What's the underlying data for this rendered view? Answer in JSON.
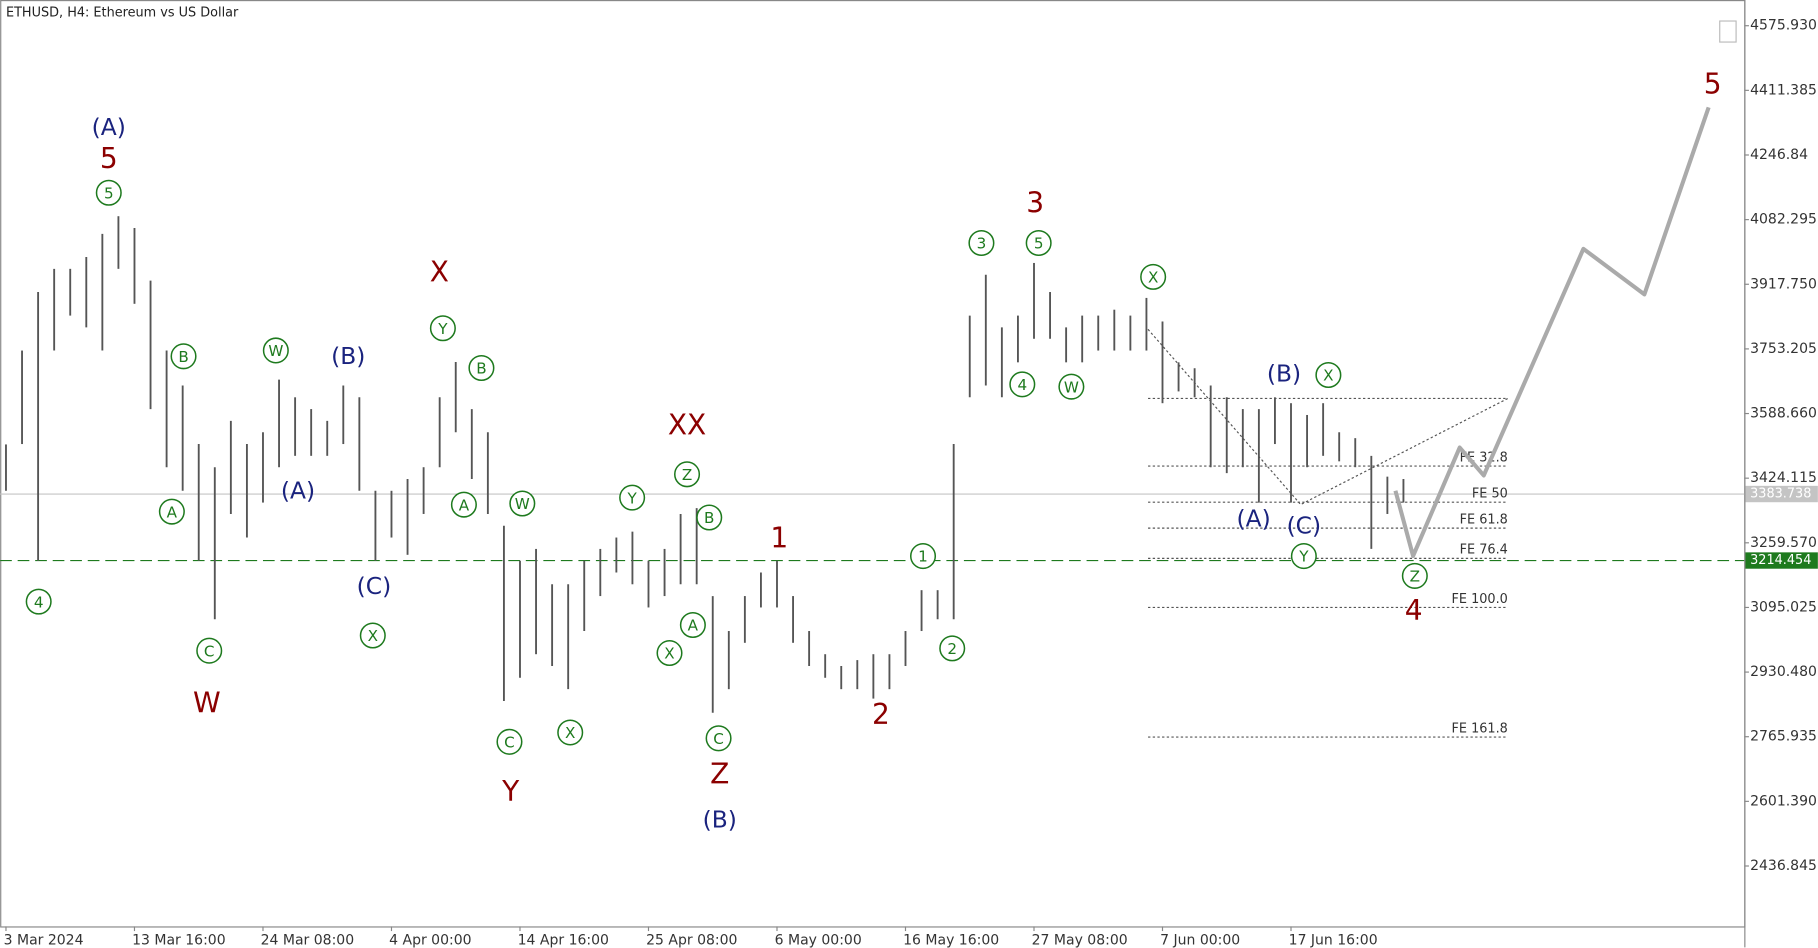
{
  "chart_data": {
    "type": "ohlc",
    "title": "ETHUSD, H4:  Ethereum vs US Dollar",
    "categories": [
      "3 Mar 2024",
      null,
      null,
      null,
      null,
      null,
      null,
      null,
      "13 Mar 16:00",
      null,
      null,
      null,
      null,
      null,
      null,
      null,
      "24 Mar 08:00",
      null,
      null,
      null,
      null,
      null,
      null,
      null,
      "4 Apr 00:00",
      null,
      null,
      null,
      null,
      null,
      null,
      null,
      "14 Apr 16:00",
      null,
      null,
      null,
      null,
      null,
      null,
      null,
      "25 Apr 08:00",
      null,
      null,
      null,
      null,
      null,
      null,
      null,
      "6 May 00:00",
      null,
      null,
      null,
      null,
      null,
      null,
      null,
      "16 May 16:00",
      null,
      null,
      null,
      null,
      null,
      null,
      null,
      "27 May 08:00",
      null,
      null,
      null,
      null,
      null,
      null,
      null,
      "7 Jun 00:00",
      null,
      null,
      null,
      null,
      null,
      null,
      null,
      "17 Jun 16:00",
      null,
      null,
      null,
      null,
      null,
      null,
      null
    ],
    "high": [
      3510,
      3749,
      3898,
      3957,
      3957,
      3987,
      4046,
      4091,
      4061,
      3927,
      3749,
      3660,
      3511,
      3452,
      3570,
      3511,
      3541,
      3675,
      3630,
      3600,
      3570,
      3660,
      3630,
      3392,
      3392,
      3422,
      3452,
      3630,
      3720,
      3600,
      3541,
      3303,
      3214,
      3244,
      3154,
      3154,
      3214,
      3244,
      3273,
      3288,
      3214,
      3244,
      3333,
      3348,
      3124,
      3035,
      3124,
      3184,
      3214,
      3124,
      3035,
      2976,
      2946,
      2961,
      2976,
      2976,
      3035,
      3139,
      3139,
      3511,
      3838,
      3942,
      3808,
      3838,
      3972,
      3898,
      3808,
      3838,
      3838,
      3853,
      3838,
      3883,
      3823,
      3719,
      3704,
      3660,
      3630,
      3600,
      3600,
      3630,
      3615,
      3585,
      3615,
      3541,
      3526,
      3481,
      3428,
      3422
    ],
    "low": [
      3392,
      3511,
      3214,
      3749,
      3838,
      3808,
      3749,
      3957,
      3868,
      3600,
      3452,
      3392,
      3214,
      3065,
      3333,
      3273,
      3362,
      3452,
      3481,
      3481,
      3481,
      3511,
      3392,
      3214,
      3273,
      3229,
      3333,
      3452,
      3541,
      3422,
      3333,
      2857,
      2916,
      2976,
      2946,
      2887,
      3035,
      3124,
      3184,
      3154,
      3095,
      3124,
      3154,
      3154,
      2827,
      2887,
      3005,
      3095,
      3095,
      3005,
      2946,
      2916,
      2887,
      2887,
      2863,
      2887,
      2946,
      3035,
      3065,
      3065,
      3630,
      3660,
      3630,
      3719,
      3779,
      3779,
      3719,
      3719,
      3749,
      3749,
      3749,
      3749,
      3615,
      3645,
      3630,
      3452,
      3437,
      3452,
      3362,
      3511,
      3362,
      3452,
      3481,
      3467,
      3452,
      3244,
      3333,
      3362
    ],
    "color": "#555555",
    "ylim": [
      2283.1,
      4641.4
    ],
    "yticks": [
      {
        "value": 4575.93,
        "label": "4575.930"
      },
      4411.385,
      4246.84,
      4082.295,
      {
        "value": 3917.75,
        "label": "3917.750"
      },
      3753.205,
      {
        "value": 3588.66,
        "label": "3588.660"
      },
      3424.115,
      {
        "value": 3259.57,
        "label": "3259.570"
      },
      3095.025,
      {
        "value": 2930.48,
        "label": "2930.480"
      },
      2765.935,
      {
        "value": 2601.39,
        "label": "2601.390"
      },
      2436.845
    ],
    "price_lines": [
      {
        "value": 3383.738,
        "color": "#c4c4c4",
        "dashed": false
      },
      {
        "value": 3214.454,
        "color": "#1e7a1e",
        "dashed": true
      }
    ],
    "fib_levels": {
      "x_range": [
        71.1,
        93.5
      ],
      "labels": [
        null,
        "FE 32.8",
        "FE 50",
        "FE 61.8",
        "FE 76.4",
        "FE 100.0",
        "FE 161.8"
      ],
      "values": [
        3627,
        3455,
        3363,
        3297,
        3220,
        3095,
        2765
      ]
    },
    "fib_triangle": {
      "x": [
        71.1,
        80.6,
        93.5
      ],
      "values": [
        3803,
        3357,
        3627
      ]
    },
    "projection": {
      "color": "#aaaaaa",
      "x": [
        86.5,
        87.6,
        90.5,
        92.0,
        98.2,
        102.0,
        106.0
      ],
      "values": [
        3392,
        3226,
        3502,
        3431,
        4008,
        3892,
        4368
      ]
    },
    "annotations": [
      {
        "text": "(A)",
        "color": "#1a237e",
        "circled": false
      },
      {
        "text": "5",
        "color": "#8b0000",
        "circled": false
      },
      {
        "text": "5",
        "color": "#1e7a1e",
        "circled": true
      },
      {
        "text": "4",
        "color": "#1e7a1e",
        "circled": true
      },
      {
        "text": "B",
        "color": "#1e7a1e",
        "circled": true
      },
      {
        "text": "A",
        "color": "#1e7a1e",
        "circled": true
      },
      {
        "text": "C",
        "color": "#1e7a1e",
        "circled": true
      },
      {
        "text": "W",
        "color": "#8b0000",
        "circled": false
      },
      {
        "text": "W",
        "color": "#1e7a1e",
        "circled": true
      },
      {
        "text": "(B)",
        "color": "#1a237e",
        "circled": false
      },
      {
        "text": "(A)",
        "color": "#1a237e",
        "circled": false
      },
      {
        "text": "(C)",
        "color": "#1a237e",
        "circled": false
      },
      {
        "text": "X",
        "color": "#1e7a1e",
        "circled": true
      },
      {
        "text": "X",
        "color": "#8b0000",
        "circled": false
      },
      {
        "text": "Y",
        "color": "#1e7a1e",
        "circled": true
      },
      {
        "text": "B",
        "color": "#1e7a1e",
        "circled": true
      },
      {
        "text": "A",
        "color": "#1e7a1e",
        "circled": true
      },
      {
        "text": "W",
        "color": "#1e7a1e",
        "circled": true
      },
      {
        "text": "C",
        "color": "#1e7a1e",
        "circled": true
      },
      {
        "text": "Y",
        "color": "#8b0000",
        "circled": false
      },
      {
        "text": "X",
        "color": "#1e7a1e",
        "circled": true
      },
      {
        "text": "XX",
        "color": "#8b0000",
        "circled": false
      },
      {
        "text": "Z",
        "color": "#1e7a1e",
        "circled": true
      },
      {
        "text": "Y",
        "color": "#1e7a1e",
        "circled": true
      },
      {
        "text": "B",
        "color": "#1e7a1e",
        "circled": true
      },
      {
        "text": "A",
        "color": "#1e7a1e",
        "circled": true
      },
      {
        "text": "X",
        "color": "#1e7a1e",
        "circled": true
      },
      {
        "text": "C",
        "color": "#1e7a1e",
        "circled": true
      },
      {
        "text": "Z",
        "color": "#8b0000",
        "circled": false
      },
      {
        "text": "(B)",
        "color": "#1a237e",
        "circled": false
      },
      {
        "text": "1",
        "color": "#8b0000",
        "circled": false
      },
      {
        "text": "1",
        "color": "#1e7a1e",
        "circled": true
      },
      {
        "text": "2",
        "color": "#1e7a1e",
        "circled": true
      },
      {
        "text": "2",
        "color": "#8b0000",
        "circled": false
      },
      {
        "text": "3",
        "color": "#8b0000",
        "circled": false
      },
      {
        "text": "3",
        "color": "#1e7a1e",
        "circled": true
      },
      {
        "text": "5",
        "color": "#1e7a1e",
        "circled": true
      },
      {
        "text": "4",
        "color": "#1e7a1e",
        "circled": true
      },
      {
        "text": "W",
        "color": "#1e7a1e",
        "circled": true
      },
      {
        "text": "X",
        "color": "#1e7a1e",
        "circled": true
      },
      {
        "text": "(B)",
        "color": "#1a237e",
        "circled": false
      },
      {
        "text": "X",
        "color": "#1e7a1e",
        "circled": true
      },
      {
        "text": "(A)",
        "color": "#1a237e",
        "circled": false
      },
      {
        "text": "(C)",
        "color": "#1a237e",
        "circled": false
      },
      {
        "text": "Y",
        "color": "#1e7a1e",
        "circled": true
      },
      {
        "text": "Z",
        "color": "#1e7a1e",
        "circled": true
      },
      {
        "text": "4",
        "color": "#8b0000",
        "circled": false
      },
      {
        "text": "5",
        "color": "#8b0000",
        "circled": false
      }
    ]
  }
}
